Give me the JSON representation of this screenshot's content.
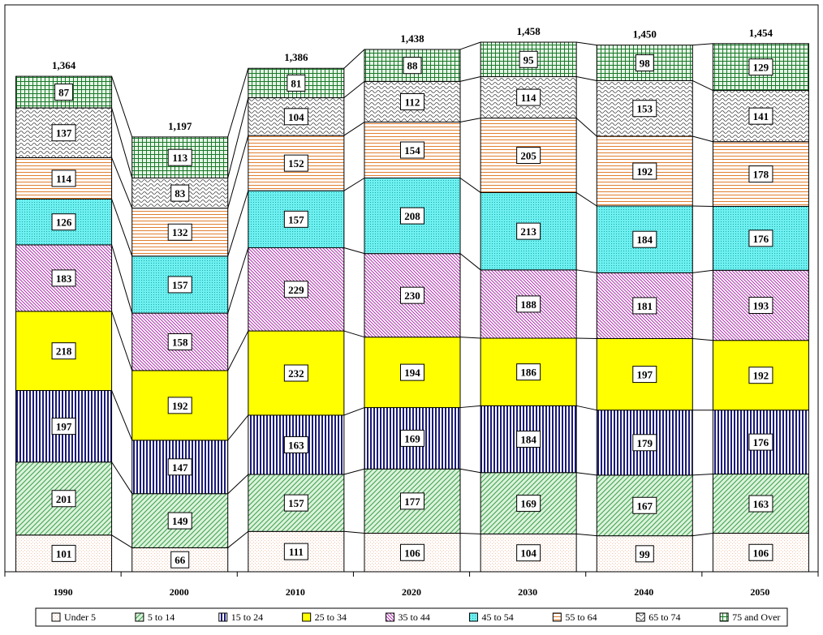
{
  "chart_data": {
    "type": "bar",
    "stacked": true,
    "title": "",
    "xlabel": "",
    "ylabel": "",
    "categories": [
      "1990",
      "2000",
      "2010",
      "2020",
      "2030",
      "2040",
      "2050"
    ],
    "totals": [
      "1,364",
      "1,197",
      "1,386",
      "1,438",
      "1,458",
      "1,450",
      "1,454"
    ],
    "series": [
      {
        "name": "Under 5",
        "values": [
          101,
          66,
          111,
          106,
          104,
          99,
          106
        ],
        "pattern": "dots",
        "color": "#f5c2a8",
        "fill": "#ffffff"
      },
      {
        "name": "5 to 14",
        "values": [
          201,
          149,
          157,
          177,
          169,
          167,
          163
        ],
        "pattern": "diag-light",
        "color": "#3aa24a",
        "fill": "#dcf2dc"
      },
      {
        "name": "15 to 24",
        "values": [
          197,
          147,
          163,
          169,
          184,
          179,
          176
        ],
        "pattern": "vertical",
        "color": "#1a1a7a",
        "fill": "#ffffff"
      },
      {
        "name": "25 to 34",
        "values": [
          218,
          192,
          232,
          194,
          186,
          197,
          192
        ],
        "pattern": "solid",
        "color": "#ffff00",
        "fill": "#ffff00"
      },
      {
        "name": "35 to 44",
        "values": [
          183,
          158,
          229,
          230,
          188,
          181,
          193
        ],
        "pattern": "diag-dense",
        "color": "#b030b0",
        "fill": "#ffffff"
      },
      {
        "name": "45 to 54",
        "values": [
          126,
          157,
          157,
          208,
          213,
          184,
          176
        ],
        "pattern": "dots-dense",
        "color": "#1aa8a8",
        "fill": "#6ff0f0"
      },
      {
        "name": "55 to 64",
        "values": [
          114,
          132,
          152,
          154,
          205,
          192,
          178
        ],
        "pattern": "horizontal",
        "color": "#e07f30",
        "fill": "#ffffff"
      },
      {
        "name": "65 to 74",
        "values": [
          137,
          83,
          104,
          112,
          114,
          153,
          141
        ],
        "pattern": "wave",
        "color": "#444444",
        "fill": "#ffffff"
      },
      {
        "name": "75 and Over",
        "values": [
          87,
          113,
          81,
          88,
          95,
          98,
          129
        ],
        "pattern": "grid",
        "color": "#1a7a2a",
        "fill": "#e6f5e6"
      }
    ],
    "ylim": [
      0,
      1550
    ],
    "grid": false,
    "connector_lines": true,
    "legend_position": "bottom"
  }
}
